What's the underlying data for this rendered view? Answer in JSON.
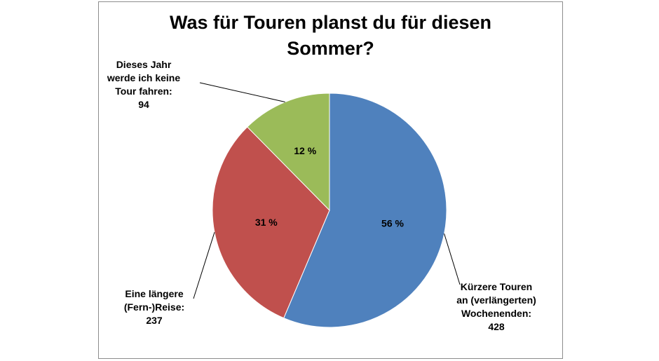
{
  "chart_data": {
    "type": "pie",
    "title_lines": [
      "Was für Touren planst du für diesen",
      "Sommer?"
    ],
    "slices": [
      {
        "label_lines": [
          "Kürzere Touren",
          "an (verlängerten)",
          "Wochenenden:"
        ],
        "value": 428,
        "percent_label": "56 %",
        "color": "#4f81bd"
      },
      {
        "label_lines": [
          "Eine längere",
          "(Fern-)Reise:"
        ],
        "value": 237,
        "percent_label": "31 %",
        "color": "#c0504d"
      },
      {
        "label_lines": [
          "Dieses Jahr",
          "werde ich keine",
          "Tour fahren:"
        ],
        "value": 94,
        "percent_label": "12 %",
        "color": "#9bbb59"
      }
    ]
  }
}
